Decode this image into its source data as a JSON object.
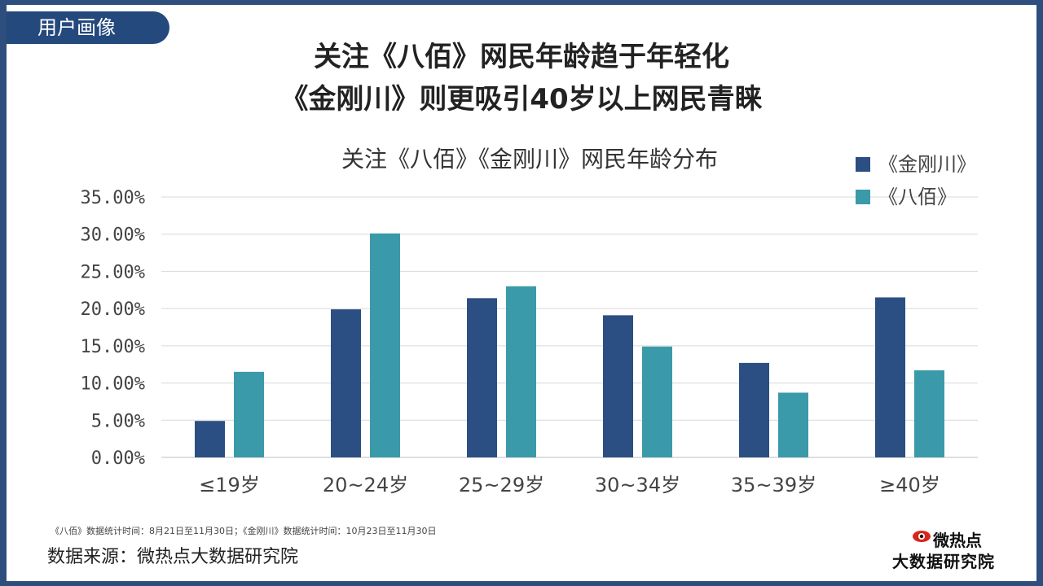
{
  "header": {
    "tag": "用户画像",
    "title_line1": "关注《八佰》网民年龄趋于年轻化",
    "title_line2": "《金刚川》则更吸引40岁以上网民青睐"
  },
  "chart_data": {
    "type": "bar",
    "title": "关注《八佰》《金刚川》网民年龄分布",
    "categories": [
      "≤19岁",
      "20~24岁",
      "25~29岁",
      "30~34岁",
      "35~39岁",
      "≥40岁"
    ],
    "series": [
      {
        "name": "《金刚川》",
        "color": "#2b4f82",
        "values": [
          4.9,
          19.9,
          21.4,
          19.1,
          12.7,
          21.5
        ]
      },
      {
        "name": "《八佰》",
        "color": "#3a9aaa",
        "values": [
          11.5,
          30.1,
          23.0,
          14.9,
          8.7,
          11.7
        ]
      }
    ],
    "ylim": [
      0,
      35
    ],
    "yticks": [
      "0.00%",
      "5.00%",
      "10.00%",
      "15.00%",
      "20.00%",
      "25.00%",
      "30.00%",
      "35.00%"
    ],
    "ytick_values": [
      0,
      5,
      10,
      15,
      20,
      25,
      30,
      35
    ],
    "grid": true,
    "legend": "top-right"
  },
  "footer": {
    "note": "《八佰》数据统计时间：8月21日至11月30日；《金刚川》数据统计时间：10月23日至11月30日",
    "source": "数据来源：微热点大数据研究院",
    "logo_line1": "微热点",
    "logo_line2": "大数据研究院"
  }
}
